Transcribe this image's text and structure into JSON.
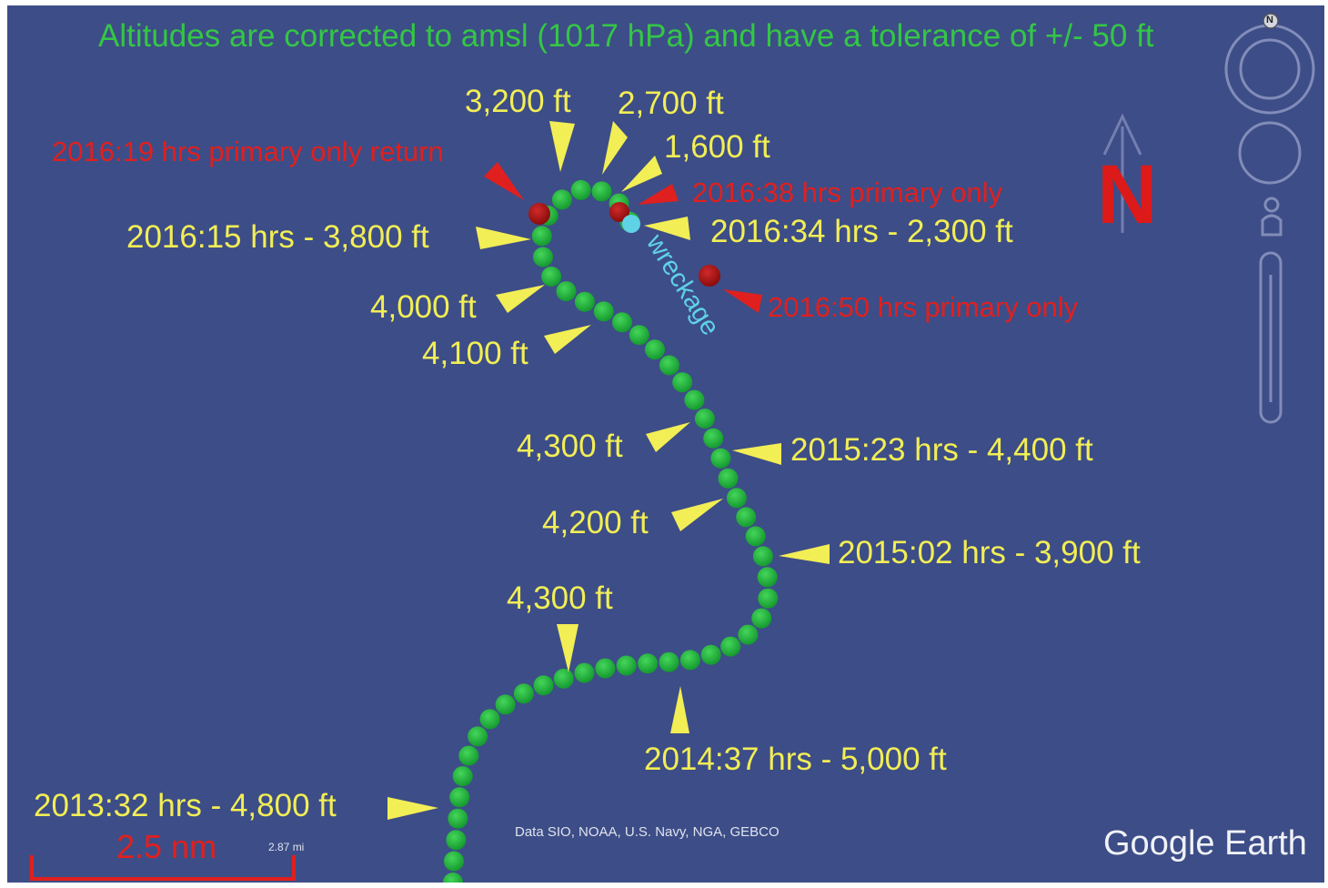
{
  "header": {
    "note": "Altitudes are corrected to amsl (1017 hPa) and have a tolerance of +/- 50 ft"
  },
  "altitude_labels": [
    {
      "id": "alt-3200",
      "text": "3,200 ft"
    },
    {
      "id": "alt-2700",
      "text": "2,700 ft"
    },
    {
      "id": "alt-1600",
      "text": "1,600 ft"
    },
    {
      "id": "t201615",
      "text": "2016:15 hrs - 3,800 ft"
    },
    {
      "id": "t201634",
      "text": "2016:34 hrs - 2,300 ft"
    },
    {
      "id": "alt-4000",
      "text": "4,000 ft"
    },
    {
      "id": "alt-4100",
      "text": "4,100 ft"
    },
    {
      "id": "alt-4300a",
      "text": "4,300 ft"
    },
    {
      "id": "t201523",
      "text": "2015:23 hrs - 4,400 ft"
    },
    {
      "id": "alt-4200",
      "text": "4,200 ft"
    },
    {
      "id": "t201502",
      "text": "2015:02 hrs - 3,900 ft"
    },
    {
      "id": "alt-4300b",
      "text": "4,300 ft"
    },
    {
      "id": "t201437",
      "text": "2014:37 hrs - 5,000 ft"
    },
    {
      "id": "t201332",
      "text": "2013:32 hrs - 4,800 ft"
    }
  ],
  "primary_returns": [
    {
      "id": "p201619",
      "text": "2016:19 hrs primary only return"
    },
    {
      "id": "p201638",
      "text": "2016:38 hrs primary only"
    },
    {
      "id": "p201650",
      "text": "2016:50 hrs primary only"
    }
  ],
  "wreckage_label": "wreckage",
  "north_label": "N",
  "scale": {
    "label": "2.5 nm",
    "small": "2.87 mi"
  },
  "credits": "Data SIO, NOAA, U.S. Navy, NGA, GEBCO",
  "brand": "Google Earth",
  "compass_letter": "N",
  "colors": {
    "ocean": "#3d4d87",
    "track": "#1fa83a",
    "primary_return": "#a81414",
    "wreckage": "#5fd2e6",
    "label_yellow": "#f2ee55",
    "label_red": "#e0201e",
    "title_green": "#34c646"
  },
  "icons": {
    "navigation": [
      "compass-ring-icon",
      "look-joystick-icon",
      "pegman-icon",
      "zoom-slider-icon"
    ]
  }
}
